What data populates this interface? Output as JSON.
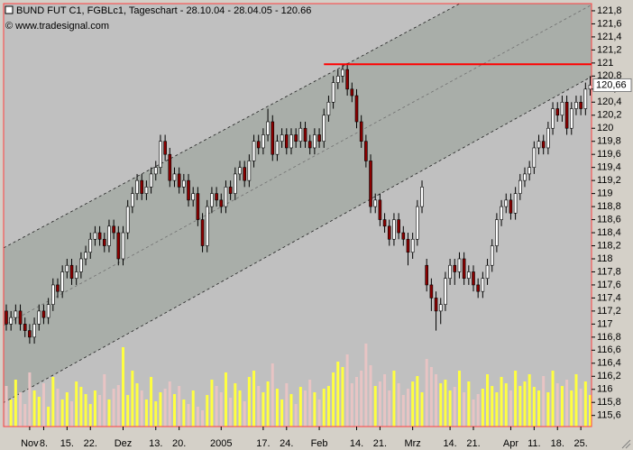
{
  "chart_data": {
    "type": "candlestick",
    "title": "BUND FUT C1, FGBLc1, Tageschart - 28.10.04 - 28.04.05 - 120.66",
    "subtitle": "© www.tradesignal.com",
    "categories": [
      null,
      null,
      null,
      null,
      null,
      "Nov",
      null,
      null,
      "8.",
      null,
      null,
      null,
      null,
      "15.",
      null,
      null,
      null,
      null,
      "22.",
      null,
      null,
      null,
      null,
      null,
      null,
      "Dez",
      null,
      null,
      null,
      null,
      null,
      null,
      "13.",
      null,
      null,
      null,
      null,
      "20.",
      null,
      null,
      null,
      null,
      null,
      null,
      null,
      null,
      "2005",
      null,
      null,
      null,
      null,
      null,
      null,
      null,
      null,
      "17.",
      null,
      null,
      null,
      null,
      "24.",
      null,
      null,
      null,
      null,
      null,
      null,
      "Feb",
      null,
      null,
      null,
      null,
      null,
      null,
      null,
      "14.",
      null,
      null,
      null,
      null,
      "21.",
      null,
      null,
      null,
      null,
      null,
      null,
      "Mrz",
      null,
      null,
      null,
      null,
      null,
      null,
      null,
      "14.",
      null,
      null,
      null,
      null,
      "21.",
      null,
      null,
      null,
      null,
      null,
      null,
      null,
      "Apr",
      null,
      null,
      null,
      null,
      "11.",
      null,
      null,
      null,
      null,
      "18.",
      null,
      null,
      null,
      null,
      "25.",
      null,
      null
    ],
    "ohlc": [
      [
        117.2,
        117.3,
        116.9,
        117.0
      ],
      [
        117.0,
        117.2,
        116.9,
        117.1
      ],
      [
        117.1,
        117.3,
        117.0,
        117.2
      ],
      [
        117.2,
        117.3,
        116.9,
        117.0
      ],
      [
        117.0,
        117.1,
        116.8,
        116.9
      ],
      [
        116.9,
        117.0,
        116.7,
        116.8
      ],
      [
        116.8,
        117.1,
        116.7,
        117.0
      ],
      [
        117.0,
        117.3,
        116.9,
        117.2
      ],
      [
        117.2,
        117.3,
        117.0,
        117.1
      ],
      [
        117.1,
        117.4,
        117.0,
        117.3
      ],
      [
        117.3,
        117.7,
        117.2,
        117.6
      ],
      [
        117.6,
        117.7,
        117.4,
        117.5
      ],
      [
        117.5,
        117.9,
        117.4,
        117.8
      ],
      [
        117.8,
        118.0,
        117.7,
        117.9
      ],
      [
        117.9,
        118.0,
        117.6,
        117.7
      ],
      [
        117.7,
        117.9,
        117.6,
        117.8
      ],
      [
        117.8,
        118.1,
        117.7,
        118.0
      ],
      [
        118.0,
        118.2,
        117.9,
        118.1
      ],
      [
        118.1,
        118.4,
        118.0,
        118.3
      ],
      [
        118.3,
        118.5,
        118.2,
        118.4
      ],
      [
        118.4,
        118.5,
        118.2,
        118.3
      ],
      [
        118.3,
        118.4,
        118.1,
        118.2
      ],
      [
        118.2,
        118.6,
        118.1,
        118.5
      ],
      [
        118.5,
        118.6,
        118.3,
        118.4
      ],
      [
        118.4,
        118.5,
        117.9,
        118.0
      ],
      [
        118.0,
        118.5,
        117.9,
        118.4
      ],
      [
        118.4,
        118.9,
        118.3,
        118.8
      ],
      [
        118.8,
        119.1,
        118.7,
        119.0
      ],
      [
        119.0,
        119.3,
        118.9,
        119.2
      ],
      [
        119.2,
        119.3,
        118.9,
        119.0
      ],
      [
        119.0,
        119.2,
        118.9,
        119.1
      ],
      [
        119.1,
        119.4,
        119.0,
        119.3
      ],
      [
        119.3,
        119.5,
        119.2,
        119.4
      ],
      [
        119.4,
        119.9,
        119.3,
        119.8
      ],
      [
        119.8,
        119.9,
        119.5,
        119.6
      ],
      [
        119.6,
        119.7,
        119.1,
        119.2
      ],
      [
        119.2,
        119.4,
        119.1,
        119.3
      ],
      [
        119.3,
        119.4,
        119.0,
        119.1
      ],
      [
        119.1,
        119.3,
        119.0,
        119.2
      ],
      [
        119.2,
        119.3,
        118.8,
        118.9
      ],
      [
        118.9,
        119.1,
        118.8,
        119.0
      ],
      [
        119.0,
        119.1,
        118.5,
        118.6
      ],
      [
        118.6,
        118.7,
        118.1,
        118.2
      ],
      [
        118.2,
        118.9,
        118.1,
        118.8
      ],
      [
        118.8,
        119.1,
        118.7,
        119.0
      ],
      [
        119.0,
        119.1,
        118.8,
        118.9
      ],
      [
        118.9,
        119.0,
        118.7,
        118.8
      ],
      [
        118.8,
        119.2,
        118.7,
        119.1
      ],
      [
        119.1,
        119.2,
        118.9,
        119.0
      ],
      [
        119.0,
        119.4,
        118.9,
        119.3
      ],
      [
        119.3,
        119.5,
        119.2,
        119.4
      ],
      [
        119.4,
        119.5,
        119.1,
        119.2
      ],
      [
        119.2,
        119.6,
        119.1,
        119.5
      ],
      [
        119.5,
        119.9,
        119.4,
        119.8
      ],
      [
        119.8,
        119.9,
        119.6,
        119.7
      ],
      [
        119.7,
        120.0,
        119.6,
        119.9
      ],
      [
        119.9,
        120.3,
        119.8,
        120.1
      ],
      [
        120.1,
        120.2,
        119.5,
        119.6
      ],
      [
        119.6,
        119.9,
        119.5,
        119.8
      ],
      [
        119.8,
        120.0,
        119.7,
        119.9
      ],
      [
        119.9,
        120.0,
        119.6,
        119.7
      ],
      [
        119.7,
        120.0,
        119.6,
        119.9
      ],
      [
        119.9,
        120.0,
        119.7,
        119.8
      ],
      [
        119.8,
        120.1,
        119.7,
        120.0
      ],
      [
        120.0,
        120.1,
        119.7,
        119.8
      ],
      [
        119.8,
        119.9,
        119.6,
        119.7
      ],
      [
        119.7,
        120.0,
        119.6,
        119.9
      ],
      [
        119.9,
        120.0,
        119.7,
        119.8
      ],
      [
        119.8,
        120.3,
        119.7,
        120.2
      ],
      [
        120.2,
        120.5,
        120.1,
        120.4
      ],
      [
        120.4,
        120.8,
        120.3,
        120.7
      ],
      [
        120.7,
        120.9,
        120.6,
        120.8
      ],
      [
        120.8,
        120.98,
        120.7,
        120.9
      ],
      [
        120.9,
        121.0,
        120.5,
        120.6
      ],
      [
        120.6,
        120.7,
        120.4,
        120.5
      ],
      [
        120.5,
        120.6,
        120.0,
        120.1
      ],
      [
        120.1,
        120.2,
        119.7,
        119.8
      ],
      [
        119.8,
        119.9,
        119.4,
        119.5
      ],
      [
        119.5,
        119.6,
        118.7,
        118.8
      ],
      [
        118.8,
        119.0,
        118.7,
        118.9
      ],
      [
        118.9,
        119.0,
        118.5,
        118.6
      ],
      [
        118.6,
        118.7,
        118.4,
        118.5
      ],
      [
        118.5,
        118.6,
        118.2,
        118.3
      ],
      [
        118.3,
        118.7,
        118.2,
        118.6
      ],
      [
        118.6,
        118.7,
        118.3,
        118.4
      ],
      [
        118.4,
        118.5,
        118.2,
        118.3
      ],
      [
        118.3,
        118.4,
        117.9,
        118.1
      ],
      [
        118.1,
        118.4,
        118.0,
        118.3
      ],
      [
        118.3,
        118.9,
        118.2,
        118.8
      ],
      [
        118.8,
        119.2,
        118.7,
        119.1
      ],
      [
        117.9,
        118.0,
        117.5,
        117.6
      ],
      [
        117.6,
        117.7,
        117.2,
        117.4
      ],
      [
        117.4,
        117.5,
        116.9,
        117.2
      ],
      [
        117.2,
        117.4,
        117.0,
        117.3
      ],
      [
        117.3,
        117.8,
        117.2,
        117.7
      ],
      [
        117.7,
        118.0,
        117.6,
        117.9
      ],
      [
        117.9,
        118.0,
        117.6,
        117.8
      ],
      [
        117.8,
        118.1,
        117.7,
        118.0
      ],
      [
        118.0,
        118.1,
        117.6,
        117.7
      ],
      [
        117.7,
        117.9,
        117.6,
        117.8
      ],
      [
        117.8,
        117.9,
        117.5,
        117.6
      ],
      [
        117.6,
        117.7,
        117.4,
        117.5
      ],
      [
        117.5,
        117.8,
        117.4,
        117.7
      ],
      [
        117.7,
        118.0,
        117.6,
        117.9
      ],
      [
        117.9,
        118.3,
        117.8,
        118.2
      ],
      [
        118.2,
        118.7,
        118.1,
        118.6
      ],
      [
        118.6,
        118.9,
        118.5,
        118.8
      ],
      [
        118.8,
        119.0,
        118.7,
        118.9
      ],
      [
        118.9,
        119.0,
        118.6,
        118.7
      ],
      [
        118.7,
        119.1,
        118.6,
        119.0
      ],
      [
        119.0,
        119.3,
        118.9,
        119.2
      ],
      [
        119.2,
        119.4,
        119.1,
        119.3
      ],
      [
        119.3,
        119.5,
        119.2,
        119.4
      ],
      [
        119.4,
        119.8,
        119.3,
        119.7
      ],
      [
        119.7,
        119.9,
        119.6,
        119.8
      ],
      [
        119.8,
        119.9,
        119.6,
        119.7
      ],
      [
        119.7,
        120.1,
        119.6,
        120.0
      ],
      [
        120.0,
        120.4,
        119.9,
        120.3
      ],
      [
        120.3,
        120.4,
        120.1,
        120.2
      ],
      [
        120.2,
        120.5,
        120.1,
        120.4
      ],
      [
        120.4,
        120.5,
        119.9,
        120.0
      ],
      [
        120.0,
        120.4,
        119.9,
        120.3
      ],
      [
        120.3,
        120.5,
        120.2,
        120.4
      ],
      [
        120.4,
        120.5,
        120.2,
        120.3
      ],
      [
        120.3,
        120.7,
        120.2,
        120.6
      ],
      [
        120.6,
        120.8,
        120.5,
        120.66
      ]
    ],
    "volume": [
      45,
      30,
      52,
      38,
      25,
      60,
      40,
      33,
      48,
      22,
      55,
      42,
      30,
      38,
      28,
      50,
      44,
      36,
      25,
      40,
      35,
      58,
      30,
      42,
      46,
      88,
      35,
      62,
      48,
      40,
      30,
      55,
      28,
      38,
      42,
      50,
      36,
      45,
      30,
      25,
      40,
      22,
      18,
      35,
      52,
      45,
      38,
      60,
      32,
      48,
      40,
      28,
      55,
      62,
      45,
      38,
      50,
      70,
      42,
      30,
      48,
      36,
      25,
      44,
      40,
      52,
      38,
      30,
      42,
      45,
      60,
      72,
      66,
      80,
      48,
      55,
      62,
      92,
      68,
      45,
      50,
      58,
      40,
      62,
      48,
      35,
      42,
      50,
      56,
      38,
      75,
      66,
      58,
      48,
      52,
      40,
      44,
      62,
      38,
      50,
      30,
      36,
      42,
      58,
      45,
      38,
      55,
      48,
      40,
      62,
      45,
      50,
      58,
      44,
      40,
      56,
      38,
      62,
      48,
      45,
      52,
      40,
      58,
      42,
      50,
      35
    ],
    "vlim": [
      0,
      100
    ],
    "ylim": [
      115.43,
      121.91
    ],
    "yticks": [
      {
        "value": 115.6,
        "label": "115,6"
      },
      {
        "value": 115.8,
        "label": "115,8"
      },
      116,
      {
        "value": 116.2,
        "label": "116,2"
      },
      {
        "value": 116.4,
        "label": "116,4"
      },
      {
        "value": 116.6,
        "label": "116,6"
      },
      {
        "value": 116.8,
        "label": "116,8"
      },
      117,
      {
        "value": 117.2,
        "label": "117,2"
      },
      {
        "value": 117.4,
        "label": "117,4"
      },
      {
        "value": 117.6,
        "label": "117,6"
      },
      {
        "value": 117.8,
        "label": "117,8"
      },
      118,
      {
        "value": 118.2,
        "label": "118,2"
      },
      {
        "value": 118.4,
        "label": "118,4"
      },
      {
        "value": 118.6,
        "label": "118,6"
      },
      {
        "value": 118.8,
        "label": "118,8"
      },
      119,
      {
        "value": 119.2,
        "label": "119,2"
      },
      {
        "value": 119.4,
        "label": "119,4"
      },
      {
        "value": 119.6,
        "label": "119,6"
      },
      {
        "value": 119.8,
        "label": "119,8"
      },
      120,
      {
        "value": 120.2,
        "label": "120,2"
      },
      {
        "value": 120.4,
        "label": "120,4"
      },
      {
        "value": 120.6,
        "label": "120,6"
      },
      {
        "value": 120.8,
        "label": "120,8"
      },
      121,
      {
        "value": 121.2,
        "label": "121,2"
      },
      {
        "value": 121.4,
        "label": "121,4"
      },
      {
        "value": 121.6,
        "label": "121,6"
      },
      {
        "value": 121.8,
        "label": "121,8"
      }
    ],
    "last_price": {
      "value": 120.66,
      "label": "120,66"
    },
    "channel_index": [
      0,
      125
    ],
    "channel": {
      "upper": [
        118.19,
        122.98
      ],
      "middle": [
        117.0,
        121.88
      ],
      "lower": [
        115.82,
        120.78
      ]
    },
    "resistance": {
      "value": 120.98,
      "from_index": 68,
      "color": "#ff0000"
    },
    "colors": {
      "up": "#ffffff",
      "down": "#8b0000",
      "volume_up": "#ffff40",
      "volume_down": "#e8c4c4",
      "channel": "#a9aea9",
      "background": "#c0c0c0"
    }
  }
}
